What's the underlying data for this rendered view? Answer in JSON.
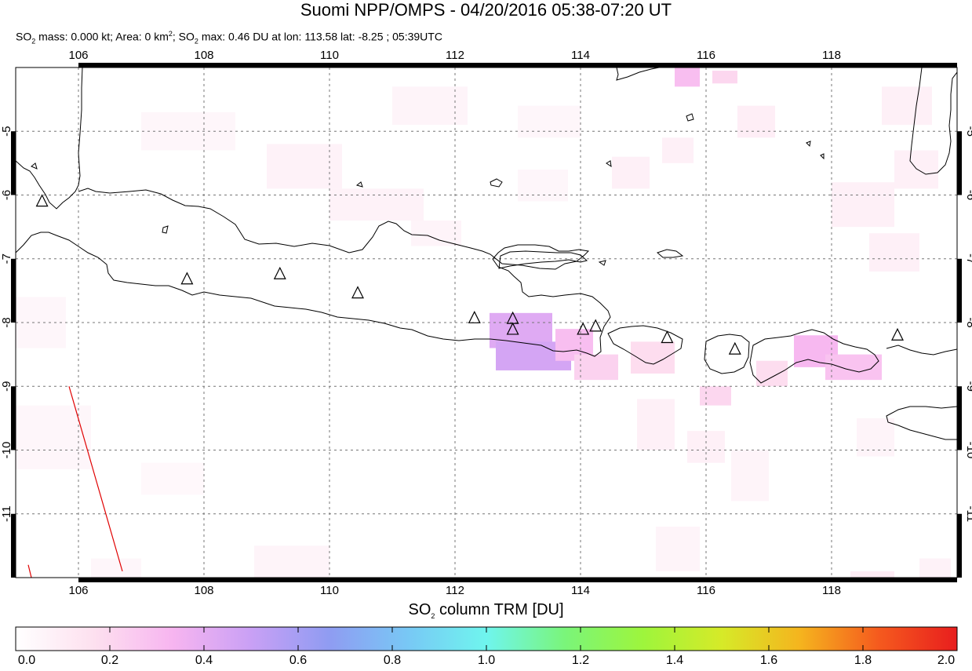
{
  "title": "Suomi NPP/OMPS - 04/20/2016 05:38-07:20 UT",
  "subtitle": {
    "so2_mass_label": "SO",
    "so2_mass_rest": " mass: 0.000 kt; Area: 0 km",
    "area_rest": "; SO",
    "max_rest": " max: 0.46 DU at lon: 113.58 lat: -8.25 ; 05:39UTC",
    "sub": "2",
    "sup": "2"
  },
  "map": {
    "lon_range": [
      105.0,
      120.0
    ],
    "lat_range": [
      -12.0,
      -4.0
    ],
    "lon_ticks": [
      "106",
      "108",
      "110",
      "112",
      "114",
      "116",
      "118"
    ],
    "lat_ticks": [
      "-5",
      "-6",
      "-7",
      "-8",
      "-9",
      "-10",
      "-11"
    ],
    "volcanoes": [
      {
        "lon": 105.42,
        "lat": -6.1
      },
      {
        "lon": 107.73,
        "lat": -7.32
      },
      {
        "lon": 109.21,
        "lat": -7.24
      },
      {
        "lon": 110.45,
        "lat": -7.54
      },
      {
        "lon": 112.31,
        "lat": -7.93
      },
      {
        "lon": 112.92,
        "lat": -7.94
      },
      {
        "lon": 112.92,
        "lat": -8.11
      },
      {
        "lon": 114.04,
        "lat": -8.11
      },
      {
        "lon": 114.24,
        "lat": -8.06
      },
      {
        "lon": 115.38,
        "lat": -8.24
      },
      {
        "lon": 116.46,
        "lat": -8.42
      },
      {
        "lon": 119.05,
        "lat": -8.2
      }
    ],
    "orbit_line": [
      [
        105.85,
        -9.0
      ],
      [
        106.7,
        -11.9
      ]
    ],
    "orbit_line2": [
      [
        105.2,
        -11.8
      ],
      [
        105.25,
        -12.0
      ]
    ],
    "so2_cells": [
      {
        "lon": 112.55,
        "lat": -7.85,
        "w": 1.0,
        "h": 0.55,
        "v": 0.42
      },
      {
        "lon": 112.65,
        "lat": -8.3,
        "w": 1.2,
        "h": 0.45,
        "v": 0.46
      },
      {
        "lon": 113.6,
        "lat": -8.1,
        "w": 0.6,
        "h": 0.5,
        "v": 0.3
      },
      {
        "lon": 113.9,
        "lat": -8.5,
        "w": 0.7,
        "h": 0.4,
        "v": 0.22
      },
      {
        "lon": 117.4,
        "lat": -8.2,
        "w": 0.7,
        "h": 0.5,
        "v": 0.32
      },
      {
        "lon": 117.9,
        "lat": -8.5,
        "w": 0.9,
        "h": 0.4,
        "v": 0.28
      },
      {
        "lon": 115.5,
        "lat": -4.0,
        "w": 0.4,
        "h": 0.3,
        "v": 0.3
      },
      {
        "lon": 116.1,
        "lat": -4.05,
        "w": 0.4,
        "h": 0.2,
        "v": 0.2
      },
      {
        "lon": 114.8,
        "lat": -8.3,
        "w": 0.7,
        "h": 0.5,
        "v": 0.18
      },
      {
        "lon": 116.8,
        "lat": -8.6,
        "w": 0.5,
        "h": 0.4,
        "v": 0.18
      },
      {
        "lon": 115.9,
        "lat": -9.0,
        "w": 0.5,
        "h": 0.3,
        "v": 0.2
      },
      {
        "lon": 107.0,
        "lat": -4.7,
        "w": 1.5,
        "h": 0.6,
        "v": 0.05
      },
      {
        "lon": 109.0,
        "lat": -5.2,
        "w": 1.2,
        "h": 0.7,
        "v": 0.07
      },
      {
        "lon": 110.0,
        "lat": -5.9,
        "w": 1.5,
        "h": 0.5,
        "v": 0.07
      },
      {
        "lon": 111.0,
        "lat": -4.3,
        "w": 1.2,
        "h": 0.6,
        "v": 0.06
      },
      {
        "lon": 113.0,
        "lat": -4.6,
        "w": 1.0,
        "h": 0.5,
        "v": 0.05
      },
      {
        "lon": 114.5,
        "lat": -5.4,
        "w": 0.6,
        "h": 0.5,
        "v": 0.08
      },
      {
        "lon": 115.3,
        "lat": -5.1,
        "w": 0.5,
        "h": 0.4,
        "v": 0.08
      },
      {
        "lon": 116.5,
        "lat": -4.6,
        "w": 0.6,
        "h": 0.5,
        "v": 0.09
      },
      {
        "lon": 118.8,
        "lat": -4.3,
        "w": 0.8,
        "h": 0.6,
        "v": 0.08
      },
      {
        "lon": 118.0,
        "lat": -5.8,
        "w": 1.0,
        "h": 0.7,
        "v": 0.08
      },
      {
        "lon": 119.0,
        "lat": -5.3,
        "w": 0.7,
        "h": 0.6,
        "v": 0.08
      },
      {
        "lon": 118.6,
        "lat": -6.6,
        "w": 0.8,
        "h": 0.6,
        "v": 0.08
      },
      {
        "lon": 114.9,
        "lat": -9.2,
        "w": 0.6,
        "h": 0.8,
        "v": 0.08
      },
      {
        "lon": 115.7,
        "lat": -9.7,
        "w": 0.6,
        "h": 0.5,
        "v": 0.08
      },
      {
        "lon": 116.4,
        "lat": -10.0,
        "w": 0.6,
        "h": 0.8,
        "v": 0.06
      },
      {
        "lon": 118.4,
        "lat": -9.5,
        "w": 0.6,
        "h": 0.6,
        "v": 0.06
      },
      {
        "lon": 105.0,
        "lat": -9.3,
        "w": 1.2,
        "h": 1.0,
        "v": 0.05
      },
      {
        "lon": 105.0,
        "lat": -7.6,
        "w": 0.8,
        "h": 0.8,
        "v": 0.05
      },
      {
        "lon": 107.0,
        "lat": -10.2,
        "w": 1.0,
        "h": 0.5,
        "v": 0.04
      },
      {
        "lon": 108.8,
        "lat": -11.5,
        "w": 1.2,
        "h": 0.6,
        "v": 0.06
      },
      {
        "lon": 106.2,
        "lat": -11.7,
        "w": 0.8,
        "h": 0.4,
        "v": 0.05
      },
      {
        "lon": 115.2,
        "lat": -11.2,
        "w": 0.7,
        "h": 0.7,
        "v": 0.06
      },
      {
        "lon": 118.3,
        "lat": -11.9,
        "w": 0.7,
        "h": 0.3,
        "v": 0.1
      },
      {
        "lon": 119.4,
        "lat": -11.7,
        "w": 0.5,
        "h": 0.4,
        "v": 0.07
      },
      {
        "lon": 113.0,
        "lat": -5.6,
        "w": 0.8,
        "h": 0.5,
        "v": 0.05
      },
      {
        "lon": 111.3,
        "lat": -6.4,
        "w": 0.8,
        "h": 0.4,
        "v": 0.06
      }
    ]
  },
  "colorbar": {
    "title_main": "SO",
    "title_sub": "2",
    "title_rest": " column TRM [DU]",
    "tick_labels": [
      "0.0",
      "0.2",
      "0.4",
      "0.6",
      "0.8",
      "1.0",
      "1.2",
      "1.4",
      "1.6",
      "1.8",
      "2.0"
    ],
    "range": [
      0.0,
      2.0
    ],
    "stops": [
      "#ffffff",
      "#fde0ef",
      "#f7b5f0",
      "#c9a0f5",
      "#8f9cf2",
      "#78c8f5",
      "#6ff5ee",
      "#7af57a",
      "#9ef53c",
      "#d6ea28",
      "#f5b41e",
      "#f55a1e",
      "#e81e1e"
    ]
  }
}
